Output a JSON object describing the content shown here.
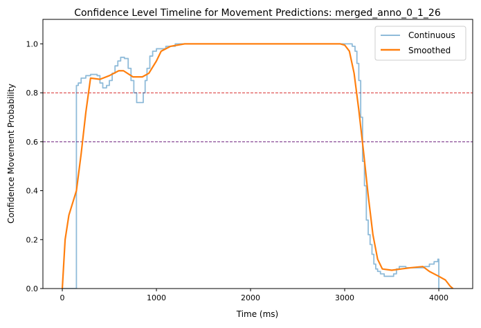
{
  "chart_data": {
    "type": "line",
    "title": "Confidence Level Timeline for Movement Predictions: merged_anno_0_1_26",
    "xlabel": "Time (ms)",
    "ylabel": "Confidence Movement Probability",
    "xlim": [
      -206,
      4360
    ],
    "ylim": [
      0,
      1.1
    ],
    "xticks": [
      0,
      1000,
      2000,
      3000,
      4000
    ],
    "xtick_labels": [
      "0",
      "1000",
      "2000",
      "3000",
      "4000"
    ],
    "yticks": [
      0,
      0.2,
      0.4,
      0.6,
      0.8,
      1.0
    ],
    "ytick_labels": [
      "0.0",
      "0.2",
      "0.4",
      "0.6",
      "0.8",
      "1.0"
    ],
    "grid": false,
    "legend_position": "top-right",
    "hlines": [
      {
        "y": 0.8,
        "color": "#d62728",
        "style": "dashed"
      },
      {
        "y": 0.6,
        "color": "#6a1b7a",
        "style": "dashed"
      }
    ],
    "series": [
      {
        "name": "Continuous",
        "color": "#1f77b4",
        "alpha": 0.5,
        "step": true,
        "x": [
          0,
          150,
          170,
          200,
          250,
          300,
          370,
          400,
          430,
          470,
          500,
          530,
          560,
          590,
          620,
          660,
          700,
          730,
          760,
          790,
          840,
          860,
          880,
          900,
          930,
          960,
          1000,
          1100,
          1200,
          3000,
          3080,
          3110,
          3130,
          3150,
          3170,
          3190,
          3210,
          3230,
          3250,
          3270,
          3290,
          3310,
          3330,
          3350,
          3380,
          3420,
          3480,
          3520,
          3550,
          3580,
          3650,
          3750,
          3850,
          3900,
          3950,
          3990,
          4000,
          4150
        ],
        "y": [
          0,
          0.83,
          0.84,
          0.86,
          0.87,
          0.875,
          0.87,
          0.84,
          0.82,
          0.83,
          0.85,
          0.88,
          0.91,
          0.93,
          0.945,
          0.94,
          0.9,
          0.85,
          0.8,
          0.76,
          0.76,
          0.8,
          0.85,
          0.9,
          0.95,
          0.97,
          0.98,
          0.99,
          1.0,
          1.0,
          0.99,
          0.97,
          0.92,
          0.85,
          0.7,
          0.52,
          0.42,
          0.28,
          0.22,
          0.18,
          0.14,
          0.1,
          0.08,
          0.07,
          0.06,
          0.05,
          0.05,
          0.06,
          0.08,
          0.09,
          0.085,
          0.085,
          0.09,
          0.1,
          0.11,
          0.12,
          0,
          0
        ]
      },
      {
        "name": "Smoothed",
        "color": "#ff7f0e",
        "alpha": 1,
        "step": false,
        "x": [
          0,
          30,
          70,
          150,
          200,
          250,
          300,
          400,
          500,
          600,
          650,
          750,
          850,
          920,
          1000,
          1050,
          1150,
          1300,
          2950,
          3000,
          3050,
          3100,
          3150,
          3200,
          3250,
          3300,
          3350,
          3400,
          3500,
          3600,
          3700,
          3830,
          3900,
          4000,
          4070,
          4120,
          4150
        ],
        "y": [
          0,
          0.2,
          0.3,
          0.4,
          0.55,
          0.72,
          0.86,
          0.855,
          0.87,
          0.89,
          0.89,
          0.865,
          0.865,
          0.88,
          0.93,
          0.97,
          0.99,
          1.0,
          1.0,
          0.995,
          0.97,
          0.88,
          0.73,
          0.56,
          0.38,
          0.22,
          0.12,
          0.08,
          0.075,
          0.08,
          0.085,
          0.09,
          0.07,
          0.05,
          0.035,
          0.01,
          0
        ]
      }
    ]
  }
}
